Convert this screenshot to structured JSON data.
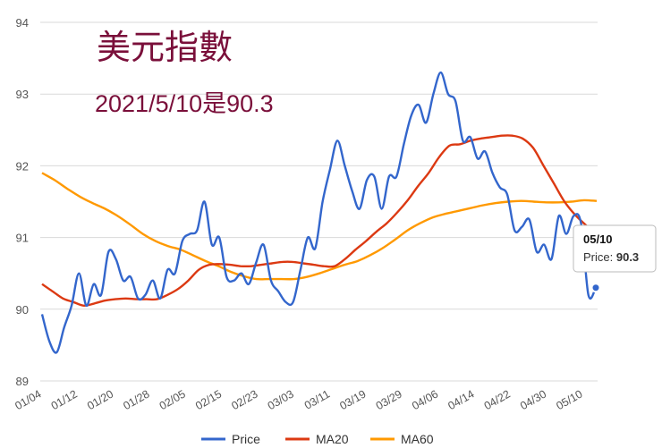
{
  "chart_data": {
    "type": "line",
    "title": "美元指數",
    "subtitle": "2021/5/10是90.3",
    "ylim": [
      89,
      94
    ],
    "yticks": [
      89,
      90,
      91,
      92,
      93,
      94
    ],
    "x_tick_labels": [
      "01/04",
      "01/12",
      "01/20",
      "01/28",
      "02/05",
      "02/15",
      "02/23",
      "03/03",
      "03/11",
      "03/19",
      "03/29",
      "04/06",
      "04/14",
      "04/22",
      "04/30",
      "05/10"
    ],
    "grid": true,
    "legend_position": "bottom",
    "tooltip": {
      "date": "05/10",
      "label": "Price",
      "value": "90.3"
    },
    "series": [
      {
        "name": "Price",
        "color": "#3366cc",
        "values": [
          89.93,
          89.55,
          89.4,
          89.75,
          90.05,
          90.5,
          90.05,
          90.35,
          90.2,
          90.8,
          90.7,
          90.4,
          90.45,
          90.15,
          90.2,
          90.4,
          90.15,
          90.55,
          90.5,
          90.95,
          91.05,
          91.1,
          91.5,
          90.9,
          91.0,
          90.45,
          90.4,
          90.5,
          90.35,
          90.65,
          90.9,
          90.4,
          90.25,
          90.1,
          90.1,
          90.55,
          91.0,
          90.85,
          91.5,
          91.95,
          92.35,
          92.0,
          91.65,
          91.4,
          91.8,
          91.85,
          91.4,
          91.85,
          91.85,
          92.3,
          92.7,
          92.85,
          92.6,
          93.0,
          93.3,
          93.0,
          92.9,
          92.35,
          92.4,
          92.1,
          92.2,
          91.9,
          91.7,
          91.6,
          91.1,
          91.15,
          91.25,
          90.8,
          90.9,
          90.7,
          91.3,
          91.05,
          91.3,
          91.2,
          90.2,
          90.3
        ]
      },
      {
        "name": "MA20",
        "color": "#dc3912",
        "values": [
          90.35,
          90.25,
          90.15,
          90.1,
          90.05,
          90.08,
          90.12,
          90.14,
          90.15,
          90.14,
          90.14,
          90.14,
          90.2,
          90.28,
          90.4,
          90.55,
          90.62,
          90.63,
          90.62,
          90.6,
          90.6,
          90.62,
          90.64,
          90.66,
          90.66,
          90.64,
          90.62,
          90.6,
          90.6,
          90.7,
          90.83,
          90.95,
          91.08,
          91.2,
          91.35,
          91.52,
          91.72,
          91.9,
          92.12,
          92.28,
          92.3,
          92.35,
          92.38,
          92.4,
          92.42,
          92.42,
          92.38,
          92.25,
          92.0,
          91.75,
          91.5,
          91.32,
          91.18,
          91.05
        ]
      },
      {
        "name": "MA60",
        "color": "#ff9900",
        "values": [
          91.9,
          91.8,
          91.68,
          91.57,
          91.48,
          91.4,
          91.3,
          91.18,
          91.05,
          90.95,
          90.88,
          90.83,
          90.75,
          90.67,
          90.6,
          90.52,
          90.46,
          90.42,
          90.42,
          90.42,
          90.42,
          90.45,
          90.5,
          90.56,
          90.62,
          90.67,
          90.75,
          90.85,
          90.97,
          91.1,
          91.2,
          91.28,
          91.33,
          91.37,
          91.41,
          91.45,
          91.48,
          91.5,
          91.51,
          91.5,
          91.49,
          91.49,
          91.5,
          91.52,
          91.51
        ]
      }
    ]
  }
}
